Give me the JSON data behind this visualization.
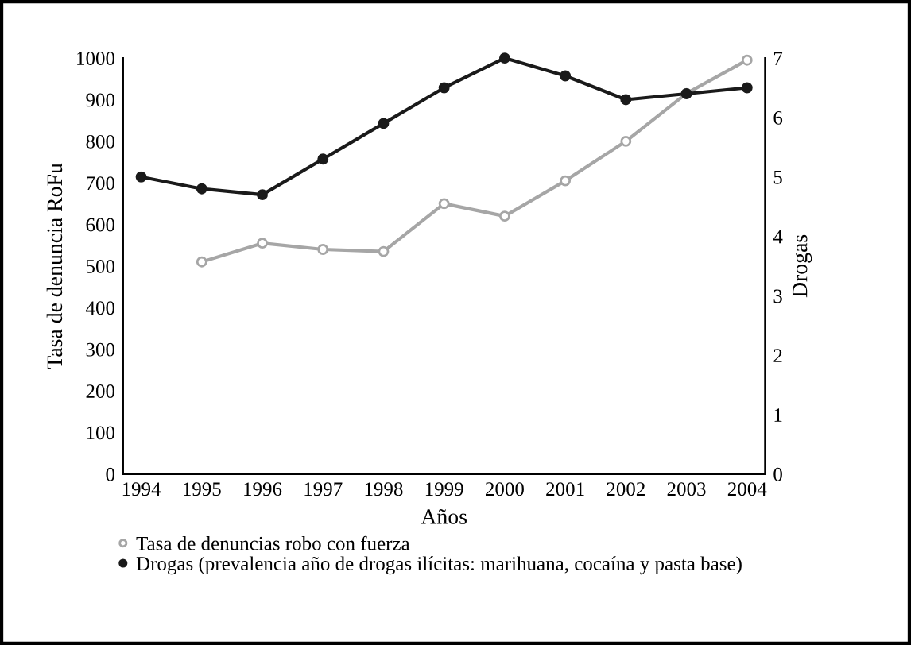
{
  "chart_data": {
    "type": "line",
    "xlabel": "Años",
    "ylabel": "Tasa de denuncia RoFu",
    "y2label": "Drogas",
    "categories": [
      "1994",
      "1995",
      "1996",
      "1997",
      "1998",
      "1999",
      "2000",
      "2001",
      "2002",
      "2003",
      "2004"
    ],
    "series": [
      {
        "name": "Tasa de denuncias robo con fuerza",
        "color": "#a6a6a6",
        "marker": "circle",
        "values": [
          null,
          510,
          555,
          540,
          535,
          650,
          620,
          705,
          800,
          915,
          995
        ]
      },
      {
        "name": "Drogas (prevalencia año de drogas ilícitas: marihuana, cocaína y pasta base)",
        "color": "#1a1a1a",
        "marker": "circle",
        "axis": "y2",
        "values": [
          5.0,
          4.8,
          4.7,
          5.3,
          5.9,
          6.5,
          7.0,
          6.7,
          6.3,
          6.4,
          6.5
        ]
      }
    ],
    "ylim": [
      0,
      1000
    ],
    "yticks": [
      0,
      100,
      200,
      300,
      400,
      500,
      600,
      700,
      800,
      900,
      1000
    ],
    "y2lim": [
      0,
      7
    ],
    "y2ticks": [
      0,
      1,
      2,
      3,
      4,
      5,
      6,
      7
    ],
    "grid": false,
    "legend": "bottom"
  }
}
